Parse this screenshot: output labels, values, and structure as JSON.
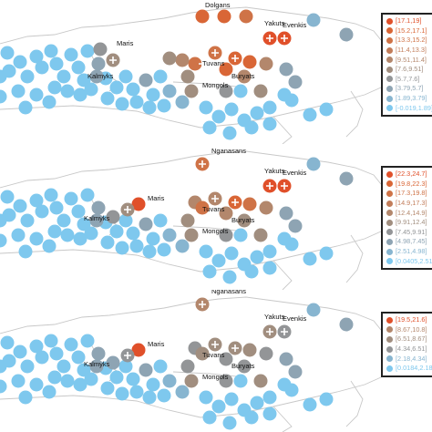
{
  "panels": [
    {
      "legend": [
        {
          "label": "[17.1,19]",
          "color": "#e0502a"
        },
        {
          "label": "[15.2,17.1]",
          "color": "#d96636"
        },
        {
          "label": "[13.3,15.2]",
          "color": "#cf7347"
        },
        {
          "label": "[11.4,13.3]",
          "color": "#c27d5a"
        },
        {
          "label": "[9.51,11.4]",
          "color": "#b3876c"
        },
        {
          "label": "[7.6,9.51]",
          "color": "#a18e7f"
        },
        {
          "label": "[5.7,7.6]",
          "color": "#939597"
        },
        {
          "label": "[3.79,5.7]",
          "color": "#8ea4b3"
        },
        {
          "label": "[1.89,3.79]",
          "color": "#87b5d0"
        },
        {
          "label": "[-0.019,1.89]",
          "color": "#7ec8ee"
        }
      ],
      "ethnic_labels": [
        "Dolgans",
        "Yakuts",
        "Evenkis",
        "Maris",
        "Kalmyks",
        "Tuvans",
        "Buryats",
        "Mongols"
      ]
    },
    {
      "legend": [
        {
          "label": "[22.3,24.7]",
          "color": "#e0502a"
        },
        {
          "label": "[19.8,22.3]",
          "color": "#d96636"
        },
        {
          "label": "[17.3,19.8]",
          "color": "#cf7347"
        },
        {
          "label": "[14.9,17.3]",
          "color": "#c27d5a"
        },
        {
          "label": "[12.4,14.9]",
          "color": "#b3876c"
        },
        {
          "label": "[9.91,12.4]",
          "color": "#a18e7f"
        },
        {
          "label": "[7.45,9.91]",
          "color": "#939597"
        },
        {
          "label": "[4.98,7.45]",
          "color": "#8ea4b3"
        },
        {
          "label": "[2.51,4.98]",
          "color": "#87b5d0"
        },
        {
          "label": "[0.0405,2.51]",
          "color": "#7ec8ee"
        }
      ],
      "ethnic_labels": [
        "Nganasans",
        "Maris",
        "Kalmyks",
        "Tuvans",
        "Buryats",
        "Yakuts",
        "Evenkis",
        "Mongols"
      ]
    },
    {
      "legend": [
        {
          "label": "[19.5,21.6]",
          "color": "#e0502a"
        },
        {
          "label": "[8.67,10.8]",
          "color": "#b3876c"
        },
        {
          "label": "[6.51,8.67]",
          "color": "#a18e7f"
        },
        {
          "label": "[4.34,6.51]",
          "color": "#939597"
        },
        {
          "label": "[2.18,4.34]",
          "color": "#87b5d0"
        },
        {
          "label": "[0.0184,2.18]",
          "color": "#7ec8ee"
        }
      ],
      "ethnic_labels": [
        "Nganasans",
        "Maris",
        "Kalmyks",
        "Tuvans",
        "Buryats",
        "Yakuts",
        "Evenkis",
        "Mongols"
      ]
    }
  ]
}
